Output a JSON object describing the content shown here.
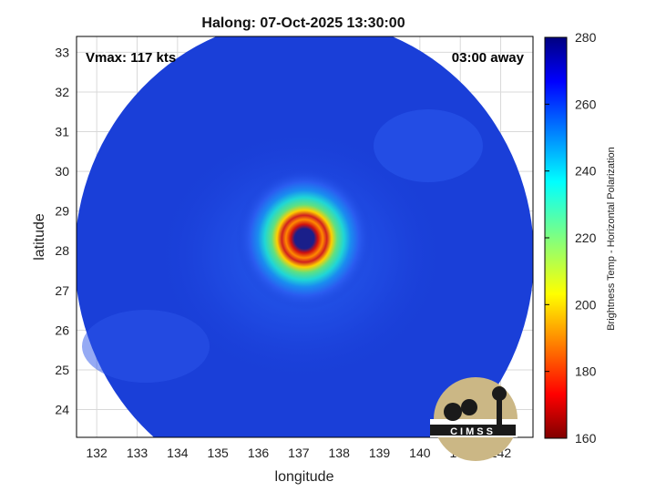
{
  "chart_data": {
    "type": "heatmap",
    "title": "Halong: 07-Oct-2025 13:30:00",
    "xlabel": "longitude",
    "ylabel": "latitude",
    "xlim": [
      131.5,
      142.8
    ],
    "ylim": [
      23.3,
      33.4
    ],
    "xticks": [
      132,
      133,
      134,
      135,
      136,
      137,
      138,
      139,
      140,
      141,
      142
    ],
    "yticks": [
      24,
      25,
      26,
      27,
      28,
      29,
      30,
      31,
      32,
      33
    ],
    "grid": true,
    "annotations": {
      "vmax": "Vmax: 117 kts",
      "time_offset": "03:00 away"
    },
    "eye_center": {
      "lon": 137.2,
      "lat": 28.4
    },
    "colorbar": {
      "label": "Brightness Temp - Horizontal Polarization",
      "min": 160,
      "max": 280,
      "ticks": [
        160,
        180,
        200,
        220,
        240,
        260,
        280
      ],
      "colormap": "jet"
    },
    "logo_text": "CIMSS"
  },
  "colors": {
    "background_field": "#1a3fd8",
    "eye": "#1a1f8a",
    "frame": "#000000",
    "grid": "#d9d9d9"
  }
}
